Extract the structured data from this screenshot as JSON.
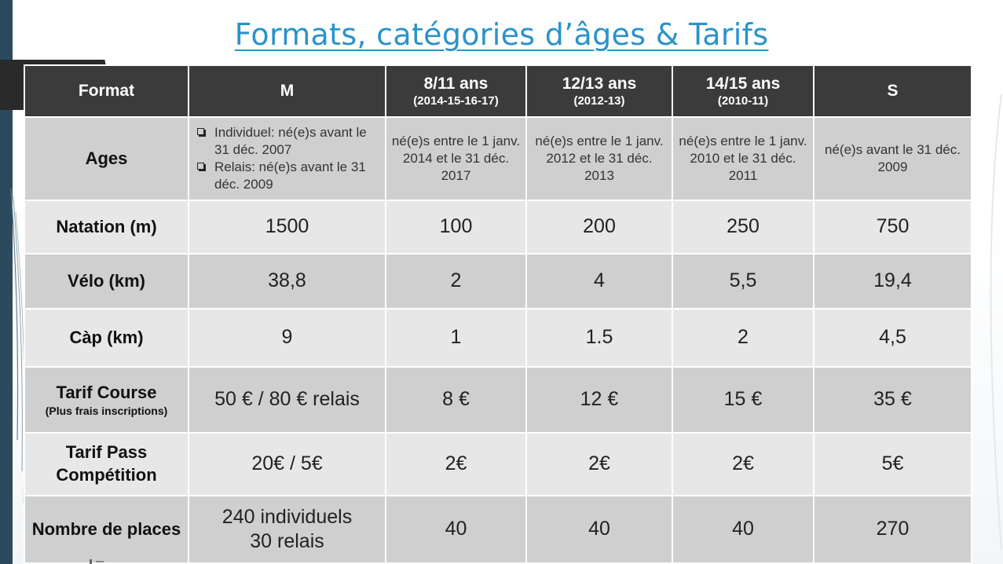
{
  "title": "Formats, catégories d’âges & Tarifs",
  "table": {
    "header": [
      {
        "label": "Format",
        "sub": ""
      },
      {
        "label": "M",
        "sub": ""
      },
      {
        "label": "8/11 ans",
        "sub": "(2014-15-16-17)"
      },
      {
        "label": "12/13 ans",
        "sub": "(2012-13)"
      },
      {
        "label": "14/15 ans",
        "sub": "(2010-11)"
      },
      {
        "label": "S",
        "sub": ""
      }
    ],
    "ages": {
      "label": "Ages",
      "m_items": [
        "Individuel: né(e)s avant le 31 déc. 2007",
        "Relais: né(e)s avant le 31 déc. 2009"
      ],
      "values": [
        "né(e)s entre le 1 janv. 2014 et le 31 déc. 2017",
        "né(e)s entre le 1 janv. 2012 et le 31 déc. 2013",
        "né(e)s entre le 1 janv. 2010 et le 31 déc. 2011",
        "né(e)s avant le 31 déc. 2009"
      ]
    },
    "rows": [
      {
        "label": "Natation (m)",
        "values": [
          "1500",
          "100",
          "200",
          "250",
          "750"
        ]
      },
      {
        "label": "Vélo (km)",
        "values": [
          "38,8",
          "2",
          "4",
          "5,5",
          "19,4"
        ]
      },
      {
        "label": "Càp (km)",
        "values": [
          "9",
          "1",
          "1.5",
          "2",
          "4,5"
        ]
      },
      {
        "label": "Tarif Course",
        "sublabel": "(Plus frais inscriptions)",
        "values": [
          "50 € / 80 € relais",
          "8 €",
          "12 €",
          "15 €",
          "35 €"
        ]
      },
      {
        "label": "Tarif Pass Compétition",
        "values": [
          "20€ / 5€",
          "2€",
          "2€",
          "2€",
          "5€"
        ]
      },
      {
        "label": "Nombre de places",
        "values": [
          "240 individuels 30 relais",
          "40",
          "40",
          "40",
          "270"
        ]
      }
    ]
  },
  "colors": {
    "title": "#2a93c9",
    "header_bg": "#3b3b3b",
    "row_dark": "#cfcfcf",
    "row_light": "#e7e7e7",
    "left_bar": "#2b4a5e"
  }
}
